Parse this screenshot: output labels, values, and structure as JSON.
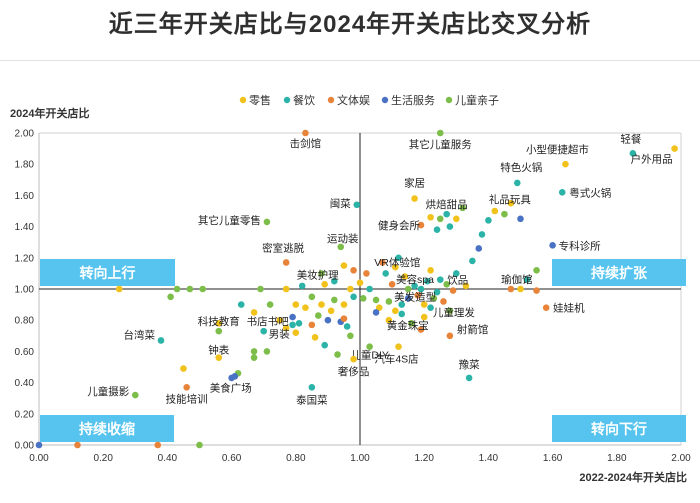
{
  "chart_data": {
    "type": "scatter",
    "title": "近三年开关店比与2024年开关店比交叉分析",
    "xlabel": "2022-2024年开关店比",
    "ylabel": "2024年开关店比",
    "xlim": [
      0,
      2
    ],
    "ylim": [
      0,
      2
    ],
    "x_ticks": [
      "0.00",
      "0.20",
      "0.40",
      "0.60",
      "0.80",
      "1.00",
      "1.20",
      "1.40",
      "1.60",
      "1.80",
      "2.00"
    ],
    "y_ticks": [
      "0.00",
      "0.20",
      "0.40",
      "0.60",
      "0.80",
      "1.00",
      "1.20",
      "1.40",
      "1.60",
      "1.80",
      "2.00"
    ],
    "legend_position": "top-center",
    "series": [
      {
        "name": "零售",
        "color": "#f1c21b"
      },
      {
        "name": "餐饮",
        "color": "#2bb3a8"
      },
      {
        "name": "文体娱",
        "color": "#e8833a"
      },
      {
        "name": "生活服务",
        "color": "#4a72c4"
      },
      {
        "name": "儿童亲子",
        "color": "#7dbe4a"
      }
    ],
    "quadrants": {
      "top_left": "转向上行",
      "top_right": "持续扩张",
      "bottom_left": "持续收缩",
      "bottom_right": "转向下行"
    },
    "points": [
      {
        "label": "击剑馆",
        "x": 0.83,
        "y": 2.0,
        "series": 2
      },
      {
        "label": "其它儿童服务",
        "x": 1.25,
        "y": 2.0,
        "series": 4
      },
      {
        "label": "轻餐",
        "x": 1.85,
        "y": 1.87,
        "series": 1
      },
      {
        "label": "户外用品",
        "x": 1.98,
        "y": 1.9,
        "series": 0
      },
      {
        "label": "小型便捷超市",
        "x": 1.64,
        "y": 1.8,
        "series": 0
      },
      {
        "label": "特色火锅",
        "x": 1.49,
        "y": 1.68,
        "series": 1
      },
      {
        "label": "粤式火锅",
        "x": 1.63,
        "y": 1.62,
        "series": 1
      },
      {
        "label": "家居",
        "x": 1.17,
        "y": 1.58,
        "series": 0
      },
      {
        "label": "礼品玩具",
        "x": 1.47,
        "y": 1.55,
        "series": 0
      },
      {
        "label": "烘焙甜品",
        "x": 1.27,
        "y": 1.48,
        "series": 1
      },
      {
        "label": "闽菜",
        "x": 0.99,
        "y": 1.54,
        "series": 1
      },
      {
        "label": "健身会所",
        "x": 1.19,
        "y": 1.41,
        "series": 2
      },
      {
        "label": "其它儿童零售",
        "x": 0.71,
        "y": 1.43,
        "series": 4
      },
      {
        "label": "专科诊所",
        "x": 1.6,
        "y": 1.28,
        "series": 3
      },
      {
        "label": "密室逃脱",
        "x": 0.77,
        "y": 1.17,
        "series": 2
      },
      {
        "label": "运动装",
        "x": 0.94,
        "y": 1.27,
        "series": 4
      },
      {
        "label": "饮品",
        "x": 1.25,
        "y": 1.06,
        "series": 1
      },
      {
        "label": "美妆护理",
        "x": 0.89,
        "y": 1.03,
        "series": 0
      },
      {
        "label": "VR体验馆",
        "x": 1.11,
        "y": 1.14,
        "series": 0
      },
      {
        "label": "美容spa",
        "x": 1.19,
        "y": 1.0,
        "series": 1
      },
      {
        "label": "瑜伽馆",
        "x": 1.47,
        "y": 1.0,
        "series": 2
      },
      {
        "label": "美发造型",
        "x": 1.15,
        "y": 0.94,
        "series": 3
      },
      {
        "label": "儿童理发",
        "x": 1.28,
        "y": 0.86,
        "series": 4
      },
      {
        "label": "娃娃机",
        "x": 1.58,
        "y": 0.88,
        "series": 2
      },
      {
        "label": "黄金珠宝",
        "x": 1.13,
        "y": 0.84,
        "series": 1
      },
      {
        "label": "射箭馆",
        "x": 1.28,
        "y": 0.7,
        "series": 2
      },
      {
        "label": "儿童DIY",
        "x": 1.03,
        "y": 0.63,
        "series": 4
      },
      {
        "label": "汽车4S店",
        "x": 1.12,
        "y": 0.63,
        "series": 0
      },
      {
        "label": "豫菜",
        "x": 1.34,
        "y": 0.43,
        "series": 1
      },
      {
        "label": "奢侈品",
        "x": 0.98,
        "y": 0.55,
        "series": 0
      },
      {
        "label": "泰国菜",
        "x": 0.85,
        "y": 0.37,
        "series": 1
      },
      {
        "label": "书店书吧",
        "x": 0.79,
        "y": 0.77,
        "series": 1
      },
      {
        "label": "男装",
        "x": 0.8,
        "y": 0.72,
        "series": 0
      },
      {
        "label": "台湾菜",
        "x": 0.38,
        "y": 0.67,
        "series": 1
      },
      {
        "label": "科技教育",
        "x": 0.56,
        "y": 0.73,
        "series": 4
      },
      {
        "label": "钟表",
        "x": 0.56,
        "y": 0.56,
        "series": 0
      },
      {
        "label": "美食广场",
        "x": 0.61,
        "y": 0.44,
        "series": 3
      },
      {
        "label": "技能培训",
        "x": 0.46,
        "y": 0.37,
        "series": 2
      },
      {
        "label": "儿童摄影",
        "x": 0.3,
        "y": 0.32,
        "series": 4
      }
    ],
    "extra_points": [
      {
        "x": 0.0,
        "y": 0.0,
        "series": 3
      },
      {
        "x": 0.12,
        "y": 0.0,
        "series": 2
      },
      {
        "x": 0.37,
        "y": 0.0,
        "series": 2
      },
      {
        "x": 0.5,
        "y": 0.0,
        "series": 4
      },
      {
        "x": 0.25,
        "y": 1.0,
        "series": 0
      },
      {
        "x": 0.41,
        "y": 0.95,
        "series": 4
      },
      {
        "x": 0.43,
        "y": 1.0,
        "series": 4
      },
      {
        "x": 0.47,
        "y": 1.0,
        "series": 4
      },
      {
        "x": 0.51,
        "y": 1.0,
        "series": 4
      },
      {
        "x": 0.45,
        "y": 0.49,
        "series": 0
      },
      {
        "x": 0.6,
        "y": 0.43,
        "series": 3
      },
      {
        "x": 0.62,
        "y": 0.46,
        "series": 4
      },
      {
        "x": 0.67,
        "y": 0.56,
        "series": 4
      },
      {
        "x": 0.67,
        "y": 0.6,
        "series": 4
      },
      {
        "x": 0.71,
        "y": 0.6,
        "series": 4
      },
      {
        "x": 0.7,
        "y": 0.73,
        "series": 1
      },
      {
        "x": 0.75,
        "y": 0.8,
        "series": 0
      },
      {
        "x": 0.77,
        "y": 0.75,
        "series": 0
      },
      {
        "x": 0.79,
        "y": 0.82,
        "series": 3
      },
      {
        "x": 0.81,
        "y": 0.78,
        "series": 1
      },
      {
        "x": 0.83,
        "y": 0.88,
        "series": 0
      },
      {
        "x": 0.85,
        "y": 0.77,
        "series": 2
      },
      {
        "x": 0.86,
        "y": 0.69,
        "series": 0
      },
      {
        "x": 0.87,
        "y": 0.83,
        "series": 4
      },
      {
        "x": 0.88,
        "y": 0.9,
        "series": 0
      },
      {
        "x": 0.89,
        "y": 0.64,
        "series": 1
      },
      {
        "x": 0.9,
        "y": 0.8,
        "series": 3
      },
      {
        "x": 0.91,
        "y": 0.86,
        "series": 0
      },
      {
        "x": 0.93,
        "y": 0.58,
        "series": 4
      },
      {
        "x": 0.94,
        "y": 0.79,
        "series": 3
      },
      {
        "x": 0.95,
        "y": 0.81,
        "series": 2
      },
      {
        "x": 0.96,
        "y": 0.76,
        "series": 1
      },
      {
        "x": 0.97,
        "y": 0.7,
        "series": 4
      },
      {
        "x": 0.8,
        "y": 0.9,
        "series": 0
      },
      {
        "x": 0.72,
        "y": 0.9,
        "series": 4
      },
      {
        "x": 0.77,
        "y": 1.0,
        "series": 0
      },
      {
        "x": 0.69,
        "y": 1.0,
        "series": 4
      },
      {
        "x": 0.63,
        "y": 0.9,
        "series": 1
      },
      {
        "x": 0.56,
        "y": 0.78,
        "series": 0
      },
      {
        "x": 0.67,
        "y": 0.85,
        "series": 0
      },
      {
        "x": 0.82,
        "y": 1.02,
        "series": 1
      },
      {
        "x": 0.88,
        "y": 1.1,
        "series": 4
      },
      {
        "x": 0.92,
        "y": 1.05,
        "series": 1
      },
      {
        "x": 0.95,
        "y": 1.15,
        "series": 0
      },
      {
        "x": 0.98,
        "y": 1.12,
        "series": 2
      },
      {
        "x": 1.0,
        "y": 1.04,
        "series": 0
      },
      {
        "x": 1.01,
        "y": 0.94,
        "series": 4
      },
      {
        "x": 1.03,
        "y": 1.0,
        "series": 1
      },
      {
        "x": 1.05,
        "y": 0.93,
        "series": 4
      },
      {
        "x": 1.06,
        "y": 0.88,
        "series": 0
      },
      {
        "x": 1.07,
        "y": 1.17,
        "series": 2
      },
      {
        "x": 1.08,
        "y": 1.1,
        "series": 1
      },
      {
        "x": 1.09,
        "y": 0.92,
        "series": 4
      },
      {
        "x": 1.1,
        "y": 1.03,
        "series": 2
      },
      {
        "x": 1.11,
        "y": 0.86,
        "series": 0
      },
      {
        "x": 1.12,
        "y": 1.2,
        "series": 1
      },
      {
        "x": 1.13,
        "y": 0.9,
        "series": 1
      },
      {
        "x": 1.14,
        "y": 1.08,
        "series": 0
      },
      {
        "x": 1.15,
        "y": 1.0,
        "series": 4
      },
      {
        "x": 1.16,
        "y": 0.78,
        "series": 4
      },
      {
        "x": 1.17,
        "y": 1.02,
        "series": 1
      },
      {
        "x": 1.18,
        "y": 0.96,
        "series": 2
      },
      {
        "x": 1.19,
        "y": 0.74,
        "series": 2
      },
      {
        "x": 1.2,
        "y": 0.9,
        "series": 0
      },
      {
        "x": 1.21,
        "y": 1.05,
        "series": 1
      },
      {
        "x": 1.22,
        "y": 1.12,
        "series": 0
      },
      {
        "x": 1.23,
        "y": 0.94,
        "series": 4
      },
      {
        "x": 1.24,
        "y": 0.98,
        "series": 1
      },
      {
        "x": 1.26,
        "y": 0.92,
        "series": 2
      },
      {
        "x": 1.27,
        "y": 1.03,
        "series": 4
      },
      {
        "x": 1.29,
        "y": 0.99,
        "series": 2
      },
      {
        "x": 1.3,
        "y": 1.1,
        "series": 1
      },
      {
        "x": 1.33,
        "y": 1.02,
        "series": 0
      },
      {
        "x": 1.35,
        "y": 1.18,
        "series": 1
      },
      {
        "x": 1.37,
        "y": 1.26,
        "series": 3
      },
      {
        "x": 1.38,
        "y": 1.35,
        "series": 1
      },
      {
        "x": 1.4,
        "y": 1.44,
        "series": 1
      },
      {
        "x": 1.42,
        "y": 1.5,
        "series": 0
      },
      {
        "x": 1.45,
        "y": 1.48,
        "series": 4
      },
      {
        "x": 1.5,
        "y": 1.45,
        "series": 3
      },
      {
        "x": 1.52,
        "y": 1.06,
        "series": 1
      },
      {
        "x": 1.55,
        "y": 1.12,
        "series": 4
      },
      {
        "x": 1.5,
        "y": 1.0,
        "series": 0
      },
      {
        "x": 1.55,
        "y": 0.99,
        "series": 2
      },
      {
        "x": 1.3,
        "y": 1.45,
        "series": 0
      },
      {
        "x": 1.32,
        "y": 1.52,
        "series": 4
      },
      {
        "x": 1.25,
        "y": 1.45,
        "series": 4
      },
      {
        "x": 1.24,
        "y": 1.38,
        "series": 1
      },
      {
        "x": 1.28,
        "y": 1.4,
        "series": 1
      },
      {
        "x": 1.22,
        "y": 1.46,
        "series": 0
      },
      {
        "x": 1.05,
        "y": 0.85,
        "series": 3
      },
      {
        "x": 1.09,
        "y": 0.8,
        "series": 0
      },
      {
        "x": 1.2,
        "y": 0.82,
        "series": 0
      },
      {
        "x": 1.22,
        "y": 0.88,
        "series": 1
      },
      {
        "x": 0.92,
        "y": 0.93,
        "series": 4
      },
      {
        "x": 0.95,
        "y": 0.9,
        "series": 0
      },
      {
        "x": 0.98,
        "y": 0.95,
        "series": 1
      },
      {
        "x": 0.85,
        "y": 0.95,
        "series": 4
      },
      {
        "x": 0.97,
        "y": 1.0,
        "series": 0
      },
      {
        "x": 1.02,
        "y": 1.1,
        "series": 2
      }
    ]
  }
}
